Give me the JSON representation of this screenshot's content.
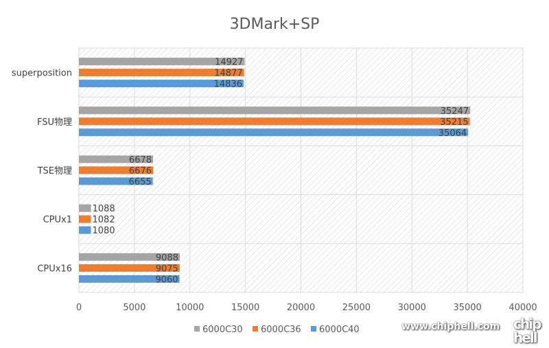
{
  "chart_data": {
    "type": "bar",
    "orientation": "horizontal",
    "title": "3DMark+SP",
    "categories": [
      "superposition",
      "FSU物理",
      "TSE物理",
      "CPUx1",
      "CPUx16"
    ],
    "series": [
      {
        "name": "6000C30",
        "color": "#a5a5a5",
        "values": [
          14927,
          35247,
          6678,
          1088,
          9088
        ]
      },
      {
        "name": "6000C36",
        "color": "#ed7d31",
        "values": [
          14877,
          35215,
          6676,
          1082,
          9075
        ]
      },
      {
        "name": "6000C40",
        "color": "#5b9bd5",
        "values": [
          14836,
          35064,
          6655,
          1080,
          9060
        ]
      }
    ],
    "xlim": [
      0,
      40000
    ],
    "xticks": [
      0,
      5000,
      10000,
      15000,
      20000,
      25000,
      30000,
      35000,
      40000
    ],
    "grid": true,
    "legend": "bottom",
    "data_labels": true
  },
  "watermark": {
    "url": "www.chiphell.com",
    "logo": "chip hell"
  }
}
